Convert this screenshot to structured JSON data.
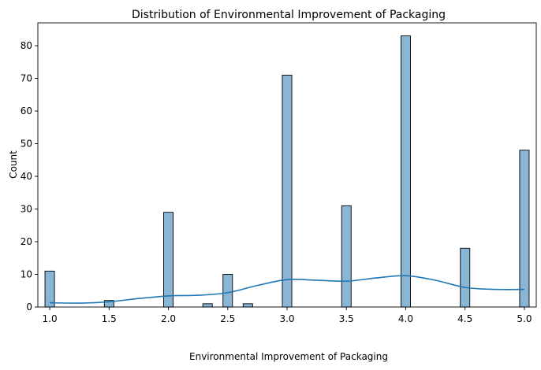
{
  "chart_data": {
    "type": "bar",
    "title": "Distribution of Environmental Improvement of Packaging",
    "xlabel": "Environmental Improvement of Packaging",
    "ylabel": "Count",
    "xlim": [
      0.9,
      5.1
    ],
    "ylim": [
      0,
      87
    ],
    "x_ticks": [
      "1.0",
      "1.5",
      "2.0",
      "2.5",
      "3.0",
      "3.5",
      "4.0",
      "4.5",
      "5.0"
    ],
    "y_ticks": [
      "0",
      "10",
      "20",
      "30",
      "40",
      "50",
      "60",
      "70",
      "80"
    ],
    "bin_width": 0.08,
    "bars": [
      {
        "x": 1.0,
        "count": 11
      },
      {
        "x": 1.5,
        "count": 2
      },
      {
        "x": 2.0,
        "count": 29
      },
      {
        "x": 2.33,
        "count": 1
      },
      {
        "x": 2.5,
        "count": 10
      },
      {
        "x": 2.67,
        "count": 1
      },
      {
        "x": 3.0,
        "count": 71
      },
      {
        "x": 3.5,
        "count": 31
      },
      {
        "x": 4.0,
        "count": 83
      },
      {
        "x": 4.5,
        "count": 18
      },
      {
        "x": 5.0,
        "count": 48
      }
    ],
    "kde": {
      "x": [
        1.0,
        1.25,
        1.5,
        1.75,
        2.0,
        2.25,
        2.5,
        2.75,
        3.0,
        3.25,
        3.5,
        3.75,
        4.0,
        4.25,
        4.5,
        4.75,
        5.0
      ],
      "y": [
        1.3,
        1.2,
        1.6,
        2.6,
        3.4,
        3.6,
        4.4,
        6.6,
        8.4,
        8.2,
        7.9,
        8.9,
        9.6,
        8.2,
        6.0,
        5.4,
        5.4
      ]
    },
    "grid": false,
    "colors": {
      "bar_fill": "#8ab6d6",
      "bar_edge": "#000000",
      "kde_line": "#1f77b4"
    }
  }
}
